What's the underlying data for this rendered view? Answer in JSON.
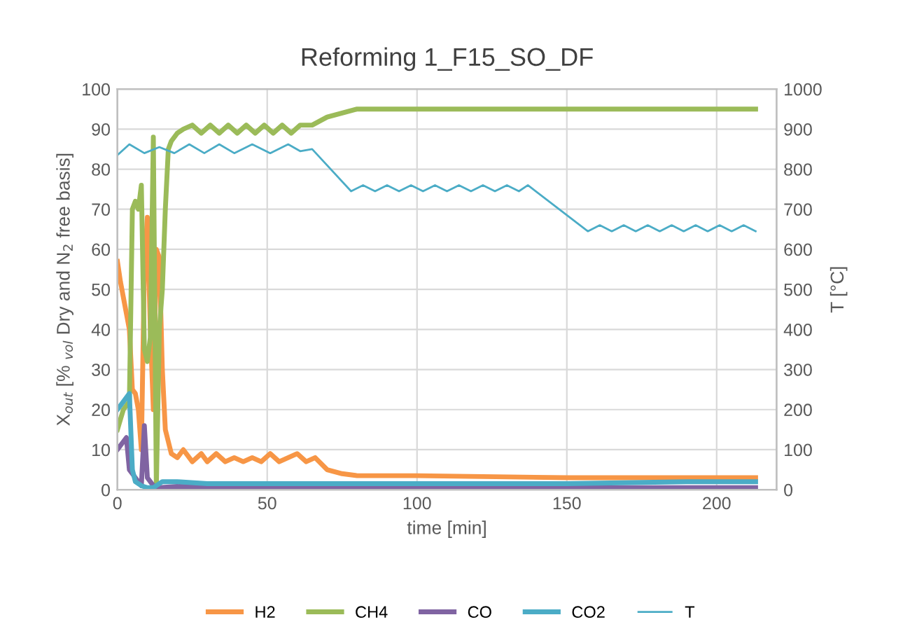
{
  "chart_data": {
    "type": "line",
    "title": "Reforming 1_F15_SO_DF",
    "xlabel": "time [min]",
    "ylabel": "X$_{out}$ [% $_{vol}$ Dry and N$_{2}$ free basis]",
    "y2label": "T [°C]",
    "xlim": [
      0,
      220
    ],
    "xticks": [
      0,
      50,
      100,
      150,
      200
    ],
    "ylim": [
      0,
      100
    ],
    "yticks": [
      0,
      10,
      20,
      30,
      40,
      50,
      60,
      70,
      80,
      90,
      100
    ],
    "y2lim": [
      0,
      1000
    ],
    "y2ticks": [
      0,
      100,
      200,
      300,
      400,
      500,
      600,
      700,
      800,
      900,
      1000
    ],
    "grid": true,
    "legend": "bottom",
    "marker": "none",
    "series": [
      {
        "name": "H2",
        "color": "#f79646",
        "x": [
          0,
          1,
          2,
          3,
          4,
          5,
          6,
          7,
          8,
          9,
          10,
          11,
          12,
          13,
          14,
          15,
          16,
          17,
          18,
          20,
          22,
          25,
          28,
          30,
          33,
          36,
          39,
          42,
          45,
          48,
          51,
          54,
          57,
          60,
          63,
          66,
          70,
          75,
          80,
          100,
          150,
          213
        ],
        "values": [
          57,
          52,
          48,
          44,
          40,
          25,
          24,
          20,
          10,
          55,
          68,
          40,
          20,
          60,
          58,
          30,
          15,
          12,
          9,
          8,
          10,
          7,
          9,
          7,
          9,
          7,
          8,
          7,
          8,
          7,
          9,
          7,
          8,
          9,
          7,
          8,
          5,
          4,
          3.5,
          3.5,
          3,
          3
        ]
      },
      {
        "name": "CH4",
        "color": "#9bbb59",
        "x": [
          0,
          2,
          4,
          5,
          6,
          7,
          8,
          9,
          10,
          11,
          12,
          13,
          14,
          15,
          16,
          17,
          18,
          20,
          22,
          25,
          28,
          31,
          34,
          37,
          40,
          43,
          46,
          49,
          52,
          55,
          58,
          61,
          65,
          70,
          75,
          80,
          100,
          150,
          213
        ],
        "values": [
          15,
          20,
          22,
          70,
          72,
          70,
          76,
          35,
          32,
          38,
          88,
          0.5,
          40,
          50,
          70,
          85,
          87,
          89,
          90,
          91,
          89,
          91,
          89,
          91,
          89,
          91,
          89,
          91,
          89,
          91,
          89,
          91,
          91,
          93,
          94,
          95,
          95,
          95,
          95
        ]
      },
      {
        "name": "CO",
        "color": "#8064a2",
        "x": [
          0,
          2,
          3,
          4,
          6,
          7,
          8,
          9,
          10,
          12,
          14,
          20,
          50,
          100,
          213
        ],
        "values": [
          10,
          12,
          13,
          5,
          3,
          2,
          1,
          16,
          3,
          1,
          0.5,
          0.8,
          0.5,
          0.5,
          0.5
        ]
      },
      {
        "name": "CO2",
        "color": "#4bacc6",
        "x": [
          0,
          2,
          4,
          5,
          6,
          8,
          10,
          12,
          13,
          15,
          20,
          30,
          60,
          100,
          150,
          190,
          213
        ],
        "values": [
          20,
          22,
          24,
          5,
          2,
          1,
          0.5,
          0.5,
          1,
          2,
          2,
          1.5,
          1.5,
          1.5,
          1.5,
          2,
          2
        ]
      },
      {
        "name": "T",
        "color": "#4bacc6",
        "axis": "y2",
        "x": [
          0,
          4,
          9,
          14,
          19,
          24,
          29,
          34,
          39,
          45,
          51,
          57,
          61,
          65,
          78,
          82,
          86,
          90,
          94,
          98,
          102,
          106,
          110,
          114,
          118,
          122,
          126,
          130,
          134,
          137,
          157,
          161,
          165,
          169,
          173,
          177,
          181,
          185,
          189,
          193,
          197,
          201,
          205,
          209,
          213
        ],
        "values": [
          835,
          862,
          840,
          855,
          840,
          862,
          840,
          862,
          840,
          862,
          840,
          862,
          845,
          850,
          745,
          760,
          745,
          760,
          745,
          760,
          745,
          760,
          745,
          760,
          745,
          760,
          745,
          760,
          745,
          760,
          645,
          660,
          645,
          660,
          645,
          660,
          645,
          660,
          645,
          660,
          645,
          660,
          645,
          660,
          645
        ]
      }
    ]
  }
}
